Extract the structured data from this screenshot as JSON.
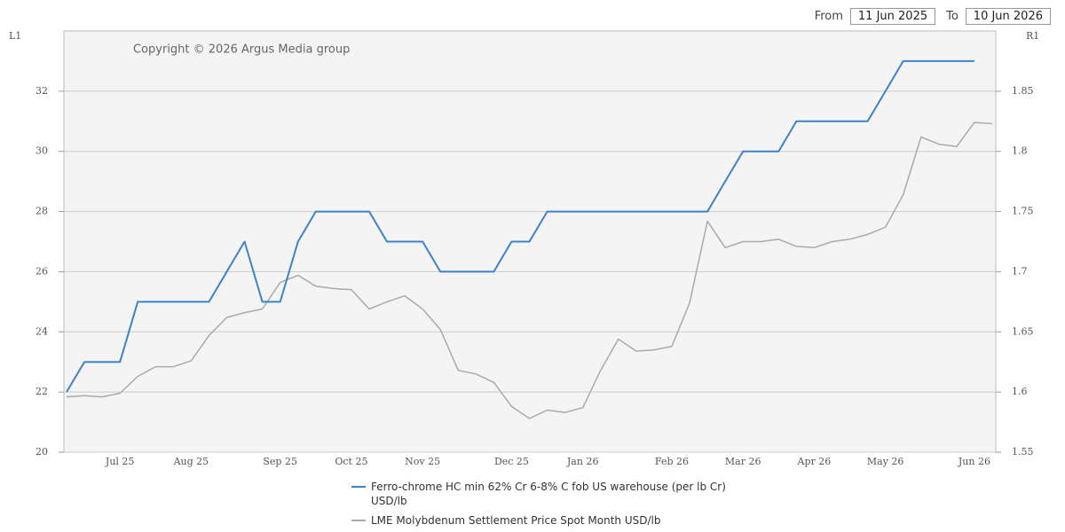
{
  "controls": {
    "from_label": "From",
    "from": "11 Jun 2025",
    "to_label": "To",
    "to": "10 Jun 2026"
  },
  "chart_data": {
    "type": "line",
    "annotation": "Copyright © 2026 Argus Media group",
    "ylabel": "L1",
    "y2label": "R1",
    "x": [
      null,
      null,
      null,
      "Jul 25",
      null,
      null,
      null,
      "Aug 25",
      null,
      null,
      null,
      null,
      "Sep 25",
      null,
      null,
      null,
      "Oct 25",
      null,
      null,
      null,
      "Nov 25",
      null,
      null,
      null,
      null,
      "Dec 25",
      null,
      null,
      null,
      "Jan 26",
      null,
      null,
      null,
      null,
      "Feb 26",
      null,
      null,
      null,
      "Mar 26",
      null,
      null,
      null,
      "Apr 26",
      null,
      null,
      null,
      "May 26",
      null,
      null,
      null,
      null,
      "Jun 26",
      null
    ],
    "ylim": [
      20,
      34
    ],
    "yticks": [
      20,
      22,
      24,
      26,
      28,
      30,
      32
    ],
    "y2lim": [
      1.55,
      1.9
    ],
    "y2ticks": [
      1.55,
      1.6,
      1.65,
      1.7,
      1.75,
      1.8,
      1.85
    ],
    "grid": true,
    "series": [
      {
        "name": "Ferro-chrome HC min 62% Cr 6-8% C fob US warehouse (per lb Cr) USD/lb",
        "color": "#3c82c8",
        "values": [
          22,
          23,
          23,
          23,
          25,
          25,
          25,
          25,
          25,
          26,
          27,
          25,
          25,
          27,
          28,
          28,
          28,
          28,
          27,
          27,
          27,
          26,
          26,
          26,
          26,
          27,
          27,
          28,
          28,
          28,
          28,
          28,
          28,
          28,
          28,
          28,
          28,
          29,
          30,
          30,
          30,
          31,
          31,
          31,
          31,
          31,
          32,
          33,
          33,
          33,
          33,
          33,
          null
        ]
      },
      {
        "name": "LME Molybdenum Settlement Price Spot Month USD/lb",
        "color": "#aaaaaa",
        "axis": "y2",
        "values": [
          1.596,
          1.597,
          1.596,
          1.599,
          1.613,
          1.621,
          1.621,
          1.626,
          1.647,
          1.662,
          1.666,
          1.669,
          1.691,
          1.697,
          1.688,
          1.686,
          1.685,
          1.669,
          1.675,
          1.68,
          1.669,
          1.652,
          1.618,
          1.615,
          1.608,
          1.588,
          1.578,
          1.585,
          1.583,
          1.587,
          1.618,
          1.644,
          1.634,
          1.635,
          1.638,
          1.674,
          1.742,
          1.72,
          1.725,
          1.725,
          1.727,
          1.721,
          1.72,
          1.725,
          1.727,
          1.731,
          1.737,
          1.764,
          1.812,
          1.806,
          1.804,
          1.824,
          1.823
        ]
      }
    ]
  }
}
